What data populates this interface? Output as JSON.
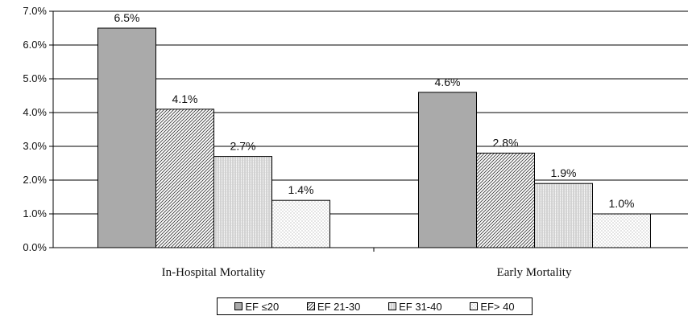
{
  "chart_data": {
    "type": "bar",
    "title": "",
    "xlabel": "",
    "ylabel": "",
    "categories": [
      "In-Hospital Mortality",
      "Early Mortality"
    ],
    "series": [
      {
        "name": "EF ≤20",
        "values": [
          6.5,
          4.6
        ],
        "labels": [
          "6.5%",
          "4.6%"
        ],
        "fill": "#aaaaaa",
        "pattern": "solid"
      },
      {
        "name": "EF 21-30",
        "values": [
          4.1,
          2.8
        ],
        "labels": [
          "4.1%",
          "2.8%"
        ],
        "fill": "#ffffff",
        "pattern": "diagonal"
      },
      {
        "name": "EF 31-40",
        "values": [
          2.7,
          1.9
        ],
        "labels": [
          "2.7%",
          "1.9%"
        ],
        "fill": "#e6e6e6",
        "pattern": "vertical"
      },
      {
        "name": "EF> 40",
        "values": [
          1.4,
          1.0
        ],
        "labels": [
          "1.4%",
          "1.0%"
        ],
        "fill": "#ffffff",
        "pattern": "dots"
      }
    ],
    "ylim": [
      0,
      7
    ],
    "yticks": [
      "0.0%",
      "1.0%",
      "2.0%",
      "3.0%",
      "4.0%",
      "5.0%",
      "6.0%",
      "7.0%"
    ],
    "grid": true,
    "legend_position": "bottom"
  }
}
